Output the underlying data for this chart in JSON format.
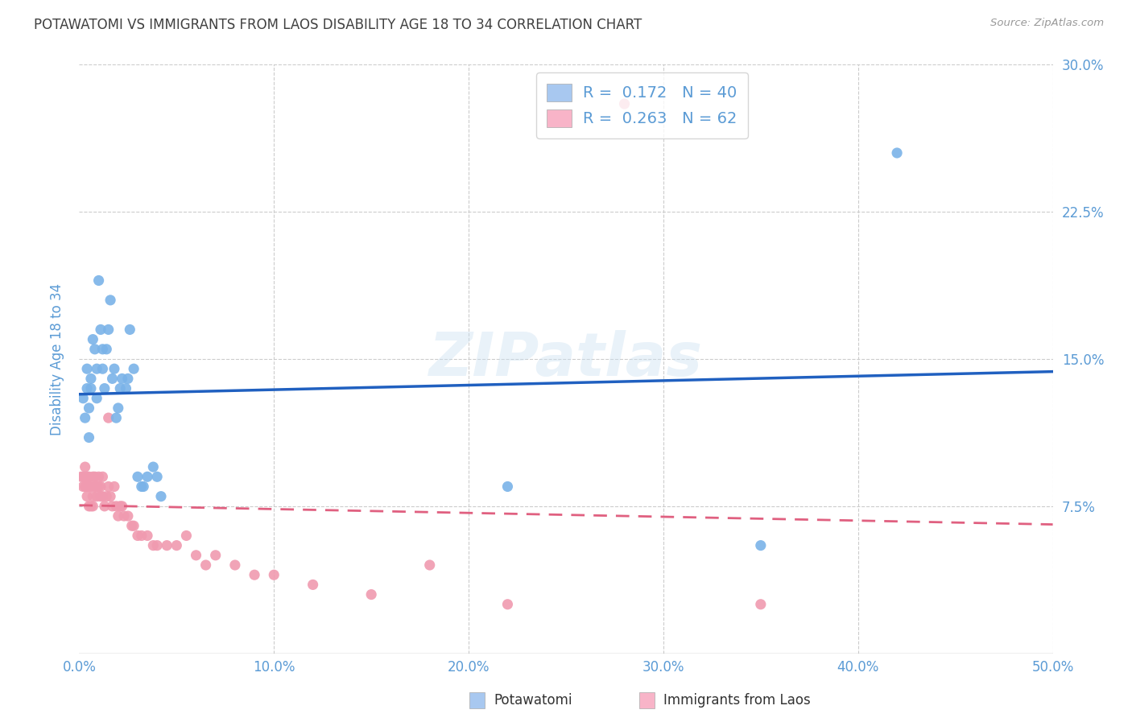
{
  "title": "POTAWATOMI VS IMMIGRANTS FROM LAOS DISABILITY AGE 18 TO 34 CORRELATION CHART",
  "source": "Source: ZipAtlas.com",
  "ylabel": "Disability Age 18 to 34",
  "xlim": [
    0.0,
    0.5
  ],
  "ylim": [
    0.0,
    0.3
  ],
  "ytick_labels_right": [
    "7.5%",
    "15.0%",
    "22.5%",
    "30.0%"
  ],
  "yticks_right": [
    0.075,
    0.15,
    0.225,
    0.3
  ],
  "xtick_labels": [
    "0.0%",
    "10.0%",
    "20.0%",
    "30.0%",
    "40.0%",
    "50.0%"
  ],
  "xticks": [
    0.0,
    0.1,
    0.2,
    0.3,
    0.4,
    0.5
  ],
  "potawatomi_color": "#7ab3e8",
  "laos_color": "#f09ab0",
  "pot_line_color": "#2060c0",
  "laos_line_color": "#e06080",
  "background_color": "#ffffff",
  "title_color": "#404040",
  "axis_label_color": "#5b9bd5",
  "tick_label_color": "#5b9bd5",
  "watermark": "ZIPatlas",
  "legend_pot_color": "#a8c8f0",
  "legend_laos_color": "#f8b4c8",
  "pot_legend_R": "0.172",
  "pot_legend_N": "40",
  "laos_legend_R": "0.263",
  "laos_legend_N": "62",
  "potawatomi_x": [
    0.002,
    0.003,
    0.004,
    0.004,
    0.005,
    0.005,
    0.006,
    0.006,
    0.007,
    0.008,
    0.009,
    0.009,
    0.01,
    0.011,
    0.012,
    0.012,
    0.013,
    0.014,
    0.015,
    0.016,
    0.017,
    0.018,
    0.019,
    0.02,
    0.021,
    0.022,
    0.024,
    0.025,
    0.026,
    0.028,
    0.03,
    0.032,
    0.033,
    0.035,
    0.038,
    0.04,
    0.042,
    0.22,
    0.35,
    0.42
  ],
  "potawatomi_y": [
    0.13,
    0.12,
    0.135,
    0.145,
    0.11,
    0.125,
    0.14,
    0.135,
    0.16,
    0.155,
    0.13,
    0.145,
    0.19,
    0.165,
    0.145,
    0.155,
    0.135,
    0.155,
    0.165,
    0.18,
    0.14,
    0.145,
    0.12,
    0.125,
    0.135,
    0.14,
    0.135,
    0.14,
    0.165,
    0.145,
    0.09,
    0.085,
    0.085,
    0.09,
    0.095,
    0.09,
    0.08,
    0.085,
    0.055,
    0.255
  ],
  "laos_x": [
    0.001,
    0.002,
    0.002,
    0.003,
    0.003,
    0.003,
    0.004,
    0.004,
    0.004,
    0.005,
    0.005,
    0.005,
    0.006,
    0.006,
    0.007,
    0.007,
    0.007,
    0.008,
    0.008,
    0.009,
    0.009,
    0.01,
    0.01,
    0.011,
    0.011,
    0.012,
    0.012,
    0.013,
    0.014,
    0.015,
    0.015,
    0.016,
    0.017,
    0.018,
    0.019,
    0.02,
    0.021,
    0.022,
    0.023,
    0.025,
    0.027,
    0.028,
    0.03,
    0.032,
    0.035,
    0.038,
    0.04,
    0.045,
    0.05,
    0.055,
    0.06,
    0.065,
    0.07,
    0.08,
    0.09,
    0.1,
    0.12,
    0.15,
    0.18,
    0.22,
    0.28,
    0.35
  ],
  "laos_y": [
    0.09,
    0.09,
    0.085,
    0.085,
    0.09,
    0.095,
    0.08,
    0.085,
    0.09,
    0.075,
    0.085,
    0.09,
    0.075,
    0.085,
    0.075,
    0.08,
    0.09,
    0.085,
    0.09,
    0.08,
    0.085,
    0.085,
    0.09,
    0.08,
    0.085,
    0.08,
    0.09,
    0.075,
    0.08,
    0.12,
    0.085,
    0.08,
    0.075,
    0.085,
    0.075,
    0.07,
    0.075,
    0.075,
    0.07,
    0.07,
    0.065,
    0.065,
    0.06,
    0.06,
    0.06,
    0.055,
    0.055,
    0.055,
    0.055,
    0.06,
    0.05,
    0.045,
    0.05,
    0.045,
    0.04,
    0.04,
    0.035,
    0.03,
    0.045,
    0.025,
    0.28,
    0.025
  ]
}
